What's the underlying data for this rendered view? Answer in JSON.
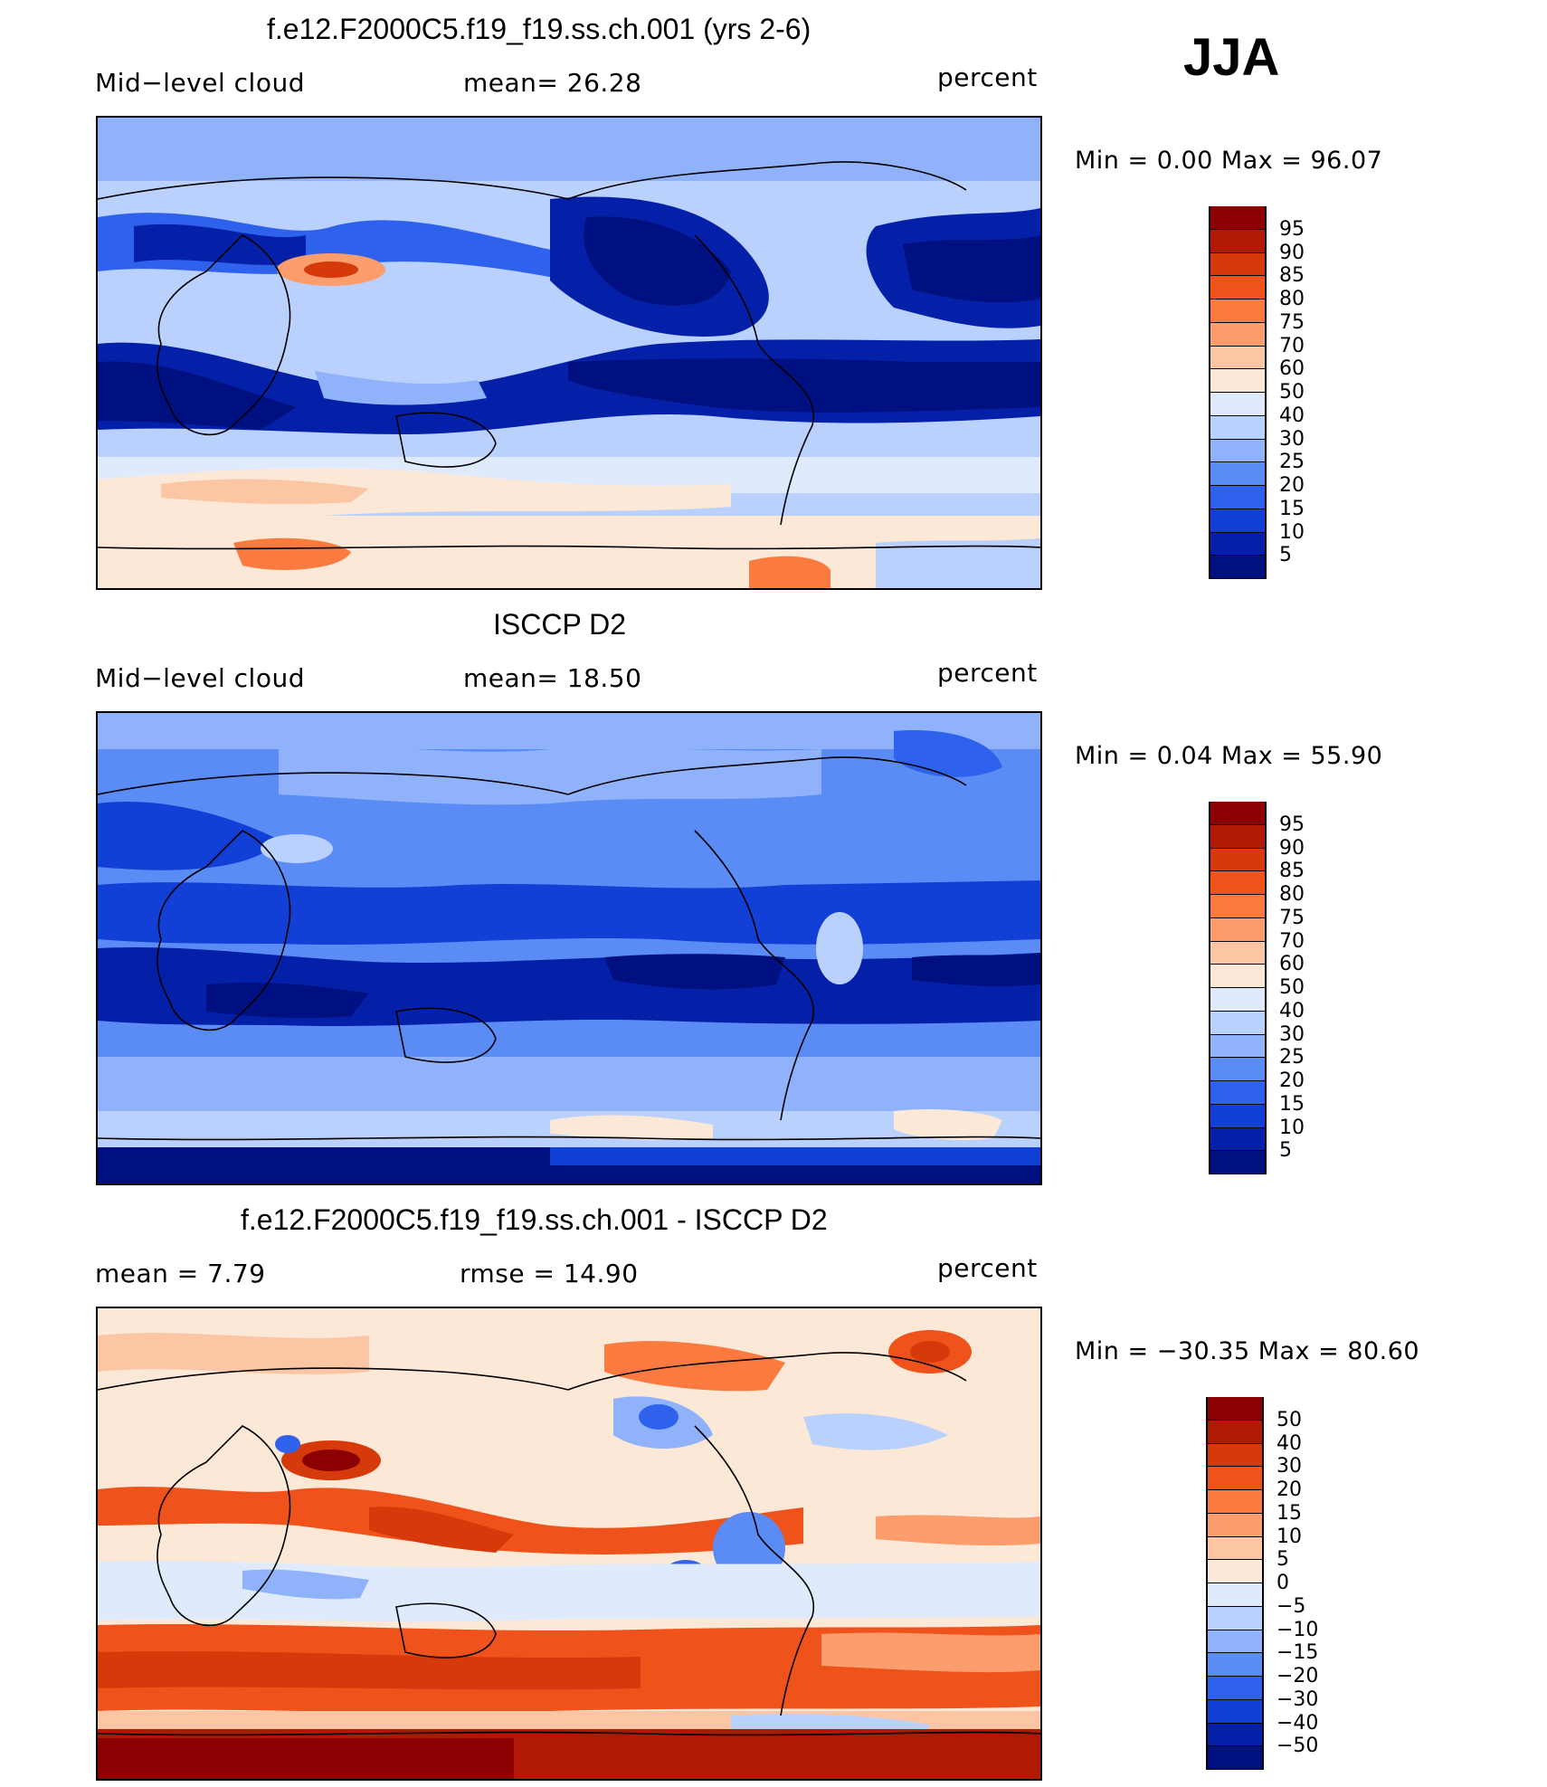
{
  "season": "JJA",
  "panels": [
    {
      "title": "f.e12.F2000C5.f19_f19.ss.ch.001 (yrs 2-6)",
      "left_label": "Mid−level cloud",
      "center_label": "mean=   26.28",
      "right_label": "percent",
      "minmax": "Min =     0.00  Max =    96.07",
      "colorbar": {
        "labels": [
          "95",
          "90",
          "85",
          "80",
          "75",
          "70",
          "60",
          "50",
          "40",
          "30",
          "25",
          "20",
          "15",
          "10",
          "5"
        ],
        "colors": [
          "#8b0000",
          "#b01a05",
          "#d63a0a",
          "#f0521c",
          "#fa7a40",
          "#fc9d6e",
          "#fcc6a4",
          "#fce8d6",
          "#dfeafc",
          "#b9d1fc",
          "#8fb2fb",
          "#5b8cf5",
          "#2e62ec",
          "#123fd6",
          "#0520a8",
          "#001080"
        ]
      }
    },
    {
      "title": "ISCCP D2",
      "left_label": "Mid−level cloud",
      "center_label": "mean=   18.50",
      "right_label": "percent",
      "minmax": "Min =     0.04  Max =    55.90",
      "colorbar": {
        "labels": [
          "95",
          "90",
          "85",
          "80",
          "75",
          "70",
          "60",
          "50",
          "40",
          "30",
          "25",
          "20",
          "15",
          "10",
          "5"
        ],
        "colors": [
          "#8b0000",
          "#b01a05",
          "#d63a0a",
          "#f0521c",
          "#fa7a40",
          "#fc9d6e",
          "#fcc6a4",
          "#fce8d6",
          "#dfeafc",
          "#b9d1fc",
          "#8fb2fb",
          "#5b8cf5",
          "#2e62ec",
          "#123fd6",
          "#0520a8",
          "#001080"
        ]
      }
    },
    {
      "title": "f.e12.F2000C5.f19_f19.ss.ch.001 - ISCCP D2",
      "left_label": "mean =     7.79",
      "center_label": "rmse  =    14.90",
      "right_label": "percent",
      "minmax": "Min = −30.35  Max =    80.60",
      "colorbar": {
        "labels": [
          "50",
          "40",
          "30",
          "20",
          "15",
          "10",
          "5",
          "0",
          "−5",
          "−10",
          "−15",
          "−20",
          "−30",
          "−40",
          "−50"
        ],
        "colors": [
          "#8b0000",
          "#b01a05",
          "#d63a0a",
          "#f0521c",
          "#fa7a40",
          "#fc9d6e",
          "#fcc6a4",
          "#fce8d6",
          "#dfeafc",
          "#b9d1fc",
          "#8fb2fb",
          "#5b8cf5",
          "#2e62ec",
          "#123fd6",
          "#0520a8",
          "#001080"
        ]
      }
    }
  ]
}
